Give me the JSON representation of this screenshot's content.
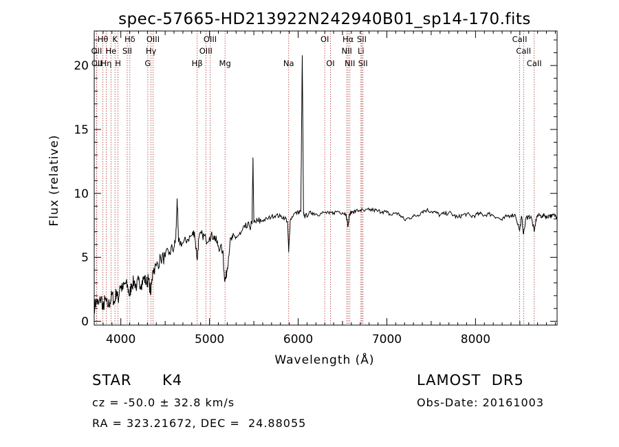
{
  "chart_data": {
    "type": "line",
    "title": "spec-57665-HD213922N242940B01_sp14-170.fits",
    "xlabel": "Wavelength (Å)",
    "ylabel": "Flux (relative)",
    "xlim": [
      3700,
      8920
    ],
    "ylim": [
      -0.3,
      22.7
    ],
    "x_ticks": [
      4000,
      5000,
      6000,
      7000,
      8000
    ],
    "y_ticks": [
      0,
      5,
      10,
      15,
      20
    ],
    "grid": false,
    "line_color": "#000000",
    "marker_color": "#b03030",
    "series": [
      {
        "values": [
          [
            3700,
            1.1
          ],
          [
            3725,
            1.6
          ],
          [
            3750,
            1.3
          ],
          [
            3780,
            1.9
          ],
          [
            3800,
            0.9
          ],
          [
            3820,
            1.7
          ],
          [
            3850,
            1.2
          ],
          [
            3880,
            1.5
          ],
          [
            3900,
            2.1
          ],
          [
            3930,
            1.4
          ],
          [
            3950,
            2.4
          ],
          [
            3970,
            1.6
          ],
          [
            3990,
            2.8
          ],
          [
            4020,
            2.5
          ],
          [
            4050,
            3.0
          ],
          [
            4080,
            2.6
          ],
          [
            4101,
            2.0
          ],
          [
            4120,
            2.9
          ],
          [
            4150,
            3.1
          ],
          [
            4180,
            2.7
          ],
          [
            4200,
            3.2
          ],
          [
            4230,
            2.9
          ],
          [
            4260,
            3.4
          ],
          [
            4290,
            3.0
          ],
          [
            4310,
            3.3
          ],
          [
            4340,
            2.2
          ],
          [
            4360,
            4.0
          ],
          [
            4400,
            4.3
          ],
          [
            4450,
            4.9
          ],
          [
            4500,
            5.0
          ],
          [
            4550,
            5.4
          ],
          [
            4600,
            5.8
          ],
          [
            4620,
            6.5
          ],
          [
            4635,
            9.6
          ],
          [
            4650,
            6.2
          ],
          [
            4700,
            6.1
          ],
          [
            4750,
            6.4
          ],
          [
            4800,
            6.7
          ],
          [
            4830,
            7.0
          ],
          [
            4861,
            4.8
          ],
          [
            4880,
            6.5
          ],
          [
            4920,
            6.8
          ],
          [
            4960,
            6.4
          ],
          [
            5000,
            6.6
          ],
          [
            5050,
            6.7
          ],
          [
            5080,
            6.2
          ],
          [
            5100,
            5.9
          ],
          [
            5150,
            5.5
          ],
          [
            5167,
            3.5
          ],
          [
            5183,
            3.3
          ],
          [
            5200,
            4.2
          ],
          [
            5230,
            6.1
          ],
          [
            5260,
            6.5
          ],
          [
            5300,
            6.6
          ],
          [
            5350,
            6.8
          ],
          [
            5400,
            7.3
          ],
          [
            5450,
            7.4
          ],
          [
            5480,
            7.6
          ],
          [
            5490,
            12.8
          ],
          [
            5500,
            7.7
          ],
          [
            5550,
            7.8
          ],
          [
            5600,
            7.9
          ],
          [
            5650,
            8.0
          ],
          [
            5700,
            8.2
          ],
          [
            5750,
            8.3
          ],
          [
            5800,
            8.2
          ],
          [
            5850,
            8.1
          ],
          [
            5880,
            7.8
          ],
          [
            5893,
            5.4
          ],
          [
            5910,
            7.9
          ],
          [
            5950,
            8.4
          ],
          [
            6000,
            8.5
          ],
          [
            6030,
            8.6
          ],
          [
            6046,
            20.8
          ],
          [
            6060,
            8.4
          ],
          [
            6080,
            8.2
          ],
          [
            6120,
            8.4
          ],
          [
            6160,
            8.5
          ],
          [
            6200,
            8.4
          ],
          [
            6250,
            8.4
          ],
          [
            6300,
            8.5
          ],
          [
            6350,
            8.4
          ],
          [
            6400,
            8.5
          ],
          [
            6450,
            8.6
          ],
          [
            6500,
            8.5
          ],
          [
            6540,
            8.4
          ],
          [
            6563,
            7.4
          ],
          [
            6580,
            8.4
          ],
          [
            6620,
            8.6
          ],
          [
            6650,
            8.6
          ],
          [
            6700,
            8.7
          ],
          [
            6750,
            8.6
          ],
          [
            6800,
            8.7
          ],
          [
            6850,
            8.7
          ],
          [
            6900,
            8.6
          ],
          [
            6950,
            8.6
          ],
          [
            7000,
            8.5
          ],
          [
            7050,
            8.3
          ],
          [
            7100,
            8.5
          ],
          [
            7150,
            8.3
          ],
          [
            7200,
            7.9
          ],
          [
            7250,
            8.1
          ],
          [
            7300,
            8.2
          ],
          [
            7350,
            8.3
          ],
          [
            7400,
            8.6
          ],
          [
            7450,
            8.7
          ],
          [
            7500,
            8.6
          ],
          [
            7550,
            8.5
          ],
          [
            7600,
            8.3
          ],
          [
            7650,
            8.4
          ],
          [
            7700,
            8.5
          ],
          [
            7750,
            8.3
          ],
          [
            7800,
            8.1
          ],
          [
            7850,
            8.3
          ],
          [
            7900,
            8.4
          ],
          [
            7950,
            8.2
          ],
          [
            8000,
            8.3
          ],
          [
            8050,
            8.4
          ],
          [
            8100,
            8.3
          ],
          [
            8150,
            8.4
          ],
          [
            8200,
            8.3
          ],
          [
            8250,
            8.1
          ],
          [
            8300,
            7.9
          ],
          [
            8350,
            8.2
          ],
          [
            8400,
            8.3
          ],
          [
            8450,
            8.3
          ],
          [
            8498,
            7.1
          ],
          [
            8520,
            8.2
          ],
          [
            8542,
            6.8
          ],
          [
            8570,
            8.1
          ],
          [
            8600,
            8.2
          ],
          [
            8630,
            8.1
          ],
          [
            8662,
            7.0
          ],
          [
            8690,
            8.2
          ],
          [
            8720,
            8.3
          ],
          [
            8750,
            8.2
          ],
          [
            8780,
            8.3
          ],
          [
            8800,
            8.1
          ],
          [
            8830,
            8.3
          ],
          [
            8860,
            8.2
          ],
          [
            8890,
            8.3
          ],
          [
            8920,
            8.2
          ]
        ]
      }
    ],
    "spectral_lines": [
      {
        "label": "Hθ",
        "x": 3798,
        "row": 0
      },
      {
        "label": "K",
        "x": 3934,
        "row": 0
      },
      {
        "label": "Hδ",
        "x": 4102,
        "row": 0
      },
      {
        "label": "OIII",
        "x": 4363,
        "row": 0
      },
      {
        "label": "OIII",
        "x": 5007,
        "row": 0
      },
      {
        "label": "Na",
        "x": 5893,
        "row": 2
      },
      {
        "label": "OI",
        "x": 6300,
        "row": 0
      },
      {
        "label": "Hα",
        "x": 6563,
        "row": 0
      },
      {
        "label": "SII",
        "x": 6717,
        "row": 0
      },
      {
        "label": "CaII",
        "x": 8498,
        "row": 0
      },
      {
        "label": "OII",
        "x": 3727,
        "row": 1
      },
      {
        "label": "He",
        "x": 3889,
        "row": 1
      },
      {
        "label": "SII",
        "x": 4072,
        "row": 1
      },
      {
        "label": "Hγ",
        "x": 4341,
        "row": 1
      },
      {
        "label": "OIII",
        "x": 4959,
        "row": 1
      },
      {
        "label": "NII",
        "x": 6548,
        "row": 1
      },
      {
        "label": "Li",
        "x": 6708,
        "row": 1
      },
      {
        "label": "CaII",
        "x": 8542,
        "row": 1
      },
      {
        "label": "OII",
        "x": 3729,
        "row": 2
      },
      {
        "label": "Hη",
        "x": 3835,
        "row": 2
      },
      {
        "label": "H",
        "x": 3968,
        "row": 2
      },
      {
        "label": "G",
        "x": 4304,
        "row": 2
      },
      {
        "label": "Hβ",
        "x": 4861,
        "row": 2
      },
      {
        "label": "Mg",
        "x": 5175,
        "row": 2
      },
      {
        "label": "OI",
        "x": 6364,
        "row": 2
      },
      {
        "label": "NII",
        "x": 6583,
        "row": 2
      },
      {
        "label": "SII",
        "x": 6731,
        "row": 2
      },
      {
        "label": "CaII",
        "x": 8662,
        "row": 2
      }
    ]
  },
  "info": {
    "object_class": "STAR",
    "subclass": "K4",
    "survey": "LAMOST  DR5",
    "redshift": "cz = -50.0 ± 32.8 km/s",
    "obs_date": "Obs-Date: 20161003",
    "coords": "RA = 323.21672, DEC =  24.88055"
  }
}
